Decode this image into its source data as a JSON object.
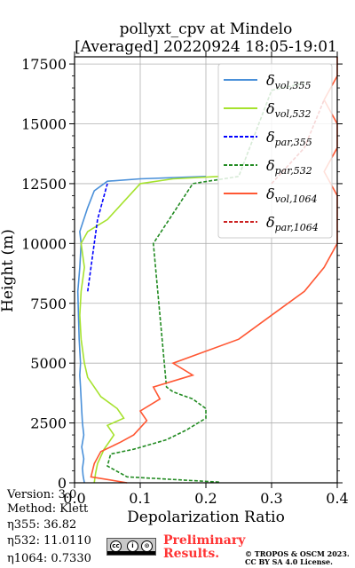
{
  "chart_data": {
    "type": "line",
    "title_line1": "pollyxt_cpv at Mindelo",
    "title_line2": "[Averaged] 20220924 18:05-19:01",
    "xlabel": "Depolarization Ratio",
    "ylabel": "Height (m)",
    "xlim": [
      0.0,
      0.4
    ],
    "ylim": [
      0,
      17800
    ],
    "x_ticks": [
      0.0,
      0.1,
      0.2,
      0.3,
      0.4
    ],
    "x_tick_labels": [
      "0.0",
      "0.1",
      "0.2",
      "0.3",
      "0.4"
    ],
    "y_ticks": [
      0,
      2500,
      5000,
      7500,
      10000,
      12500,
      15000,
      17500
    ],
    "y_tick_labels": [
      "0",
      "2500",
      "5000",
      "7500",
      "10000",
      "12500",
      "15000",
      "17500"
    ],
    "grid": true,
    "legend_position": "upper right",
    "series": [
      {
        "name": "δvol,355",
        "color": "#4a90d9",
        "style": "solid",
        "points": [
          [
            0.015,
            0
          ],
          [
            0.013,
            300
          ],
          [
            0.012,
            600
          ],
          [
            0.014,
            1000
          ],
          [
            0.011,
            1500
          ],
          [
            0.014,
            2000
          ],
          [
            0.012,
            2500
          ],
          [
            0.011,
            3000
          ],
          [
            0.01,
            3500
          ],
          [
            0.009,
            4000
          ],
          [
            0.008,
            4500
          ],
          [
            0.009,
            5000
          ],
          [
            0.007,
            6000
          ],
          [
            0.006,
            7000
          ],
          [
            0.005,
            8000
          ],
          [
            0.008,
            9000
          ],
          [
            0.01,
            10000
          ],
          [
            0.008,
            10500
          ],
          [
            0.02,
            11500
          ],
          [
            0.03,
            12200
          ],
          [
            0.05,
            12600
          ],
          [
            0.1,
            12700
          ],
          [
            0.2,
            12800
          ]
        ]
      },
      {
        "name": "δvol,532",
        "color": "#a6e22e",
        "style": "solid",
        "points": [
          [
            0.03,
            0
          ],
          [
            0.032,
            400
          ],
          [
            0.035,
            800
          ],
          [
            0.045,
            1400
          ],
          [
            0.06,
            2000
          ],
          [
            0.05,
            2400
          ],
          [
            0.075,
            2700
          ],
          [
            0.065,
            3100
          ],
          [
            0.04,
            3600
          ],
          [
            0.03,
            4000
          ],
          [
            0.02,
            4400
          ],
          [
            0.015,
            5000
          ],
          [
            0.01,
            6000
          ],
          [
            0.008,
            7000
          ],
          [
            0.01,
            8000
          ],
          [
            0.015,
            9000
          ],
          [
            0.01,
            10000
          ],
          [
            0.02,
            10500
          ],
          [
            0.05,
            11000
          ],
          [
            0.1,
            12500
          ],
          [
            0.15,
            12700
          ],
          [
            0.22,
            12800
          ]
        ]
      },
      {
        "name": "δpar,355",
        "color": "#0000ff",
        "style": "dashed",
        "points": [
          [
            0.02,
            8000
          ],
          [
            0.025,
            9000
          ],
          [
            0.03,
            10000
          ],
          [
            0.035,
            11000
          ],
          [
            0.05,
            12500
          ]
        ]
      },
      {
        "name": "δpar,532",
        "color": "#228b22",
        "style": "dashed",
        "points": [
          [
            0.22,
            30
          ],
          [
            0.08,
            250
          ],
          [
            0.05,
            700
          ],
          [
            0.055,
            1200
          ],
          [
            0.09,
            1400
          ],
          [
            0.14,
            1800
          ],
          [
            0.17,
            2200
          ],
          [
            0.2,
            2700
          ],
          [
            0.2,
            3100
          ],
          [
            0.18,
            3500
          ],
          [
            0.15,
            3800
          ],
          [
            0.14,
            4000
          ],
          [
            0.12,
            10000
          ],
          [
            0.18,
            12500
          ],
          [
            0.25,
            12800
          ],
          [
            0.3,
            16400
          ],
          [
            0.35,
            16700
          ]
        ]
      },
      {
        "name": "δvol,1064",
        "color": "#ff5733",
        "style": "solid",
        "points": [
          [
            0.08,
            0
          ],
          [
            0.025,
            250
          ],
          [
            0.03,
            800
          ],
          [
            0.04,
            1300
          ],
          [
            0.07,
            1700
          ],
          [
            0.09,
            2000
          ],
          [
            0.11,
            2600
          ],
          [
            0.1,
            3000
          ],
          [
            0.13,
            3500
          ],
          [
            0.12,
            4000
          ],
          [
            0.18,
            4500
          ],
          [
            0.15,
            5000
          ],
          [
            0.25,
            6000
          ],
          [
            0.3,
            7000
          ],
          [
            0.35,
            8000
          ],
          [
            0.38,
            9000
          ],
          [
            0.4,
            10000
          ],
          [
            0.4,
            11000
          ],
          [
            0.4,
            12000
          ],
          [
            0.38,
            13000
          ],
          [
            0.4,
            14000
          ],
          [
            0.4,
            15000
          ],
          [
            0.38,
            16000
          ],
          [
            0.4,
            17000
          ],
          [
            0.4,
            17800
          ]
        ]
      },
      {
        "name": "δpar,1064",
        "color": "#cc2222",
        "style": "dashed",
        "points": [
          [
            0.3,
            12500
          ],
          [
            0.35,
            14000
          ],
          [
            0.38,
            16000
          ]
        ]
      }
    ]
  },
  "info": {
    "version": "Version: 3.0",
    "method": "Method: Klett",
    "eta355": "η355:  36.82",
    "eta532": "η532: 11.0110",
    "eta1064": "η1064: 0.7330"
  },
  "footer": {
    "prelim_line1": "Preliminary",
    "prelim_line2": "Results.",
    "copyright_line1": "© TROPOS & OSCM 2023.",
    "copyright_line2": "CC BY SA 4.0 License."
  },
  "logo": {
    "c1": "cc",
    "c2": "i",
    "c3": "⊙"
  }
}
